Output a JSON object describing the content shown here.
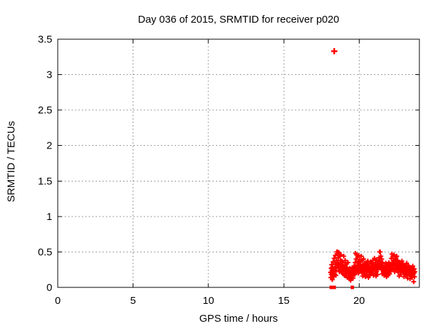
{
  "chart_data": {
    "type": "scatter",
    "title": "Day 036 of 2015, SRMTID for receiver p020",
    "xlabel": "GPS time / hours",
    "ylabel": "SRMTID / TECUs",
    "xlim": [
      0,
      24
    ],
    "ylim": [
      0,
      3.5
    ],
    "x_tick_values": [
      0,
      5,
      10,
      15,
      20
    ],
    "x_tick_labels": [
      "0",
      "5",
      "10",
      "15",
      "20"
    ],
    "y_tick_values": [
      0,
      0.5,
      1,
      1.5,
      2,
      2.5,
      3,
      3.5
    ],
    "y_tick_labels": [
      "0",
      "0.5",
      "1",
      "1.5",
      "2",
      "2.5",
      "3",
      "3.5"
    ],
    "grid": "dashed",
    "legend": "none",
    "marker": "plus",
    "marker_color": "#ff0000",
    "grid_color": "#999999",
    "border_color": "#000000",
    "background_color": "#ffffff",
    "outlier": {
      "x": 18.35,
      "y": 3.33
    },
    "zero_points": [
      18.15,
      18.35,
      19.55
    ],
    "series": [
      {
        "name": "SRMTID",
        "x_start": 18.1,
        "x_step": 0.02,
        "y": [
          0.21,
          0.14,
          0.27,
          0.18,
          0.32,
          0.24,
          0.11,
          0.29,
          0.19,
          0.36,
          0.22,
          0.15,
          0.41,
          0.26,
          0.18,
          0.33,
          0.45,
          0.28,
          0.17,
          0.24,
          0.38,
          0.5,
          0.31,
          0.47,
          0.5,
          0.35,
          0.42,
          0.27,
          0.49,
          0.33,
          0.22,
          0.44,
          0.3,
          0.38,
          0.25,
          0.46,
          0.32,
          0.21,
          0.37,
          0.28,
          0.24,
          0.35,
          0.19,
          0.29,
          0.44,
          0.26,
          0.17,
          0.31,
          0.22,
          0.38,
          0.27,
          0.16,
          0.24,
          0.33,
          0.2,
          0.28,
          0.14,
          0.25,
          0.35,
          0.21,
          0.16,
          0.23,
          0.12,
          0.19,
          0.27,
          0.15,
          0.21,
          0.1,
          0.18,
          0.24,
          0.14,
          0.2,
          0.28,
          0.17,
          0.23,
          0.13,
          0.26,
          0.19,
          0.3,
          0.22,
          0.28,
          0.18,
          0.35,
          0.48,
          0.26,
          0.4,
          0.22,
          0.46,
          0.31,
          0.24,
          0.43,
          0.29,
          0.37,
          0.2,
          0.45,
          0.33,
          0.26,
          0.39,
          0.23,
          0.31,
          0.36,
          0.25,
          0.44,
          0.3,
          0.21,
          0.38,
          0.27,
          0.16,
          0.32,
          0.24,
          0.4,
          0.28,
          0.19,
          0.34,
          0.23,
          0.29,
          0.15,
          0.26,
          0.35,
          0.22,
          0.27,
          0.18,
          0.31,
          0.23,
          0.37,
          0.26,
          0.14,
          0.29,
          0.21,
          0.33,
          0.24,
          0.17,
          0.28,
          0.36,
          0.22,
          0.3,
          0.19,
          0.25,
          0.34,
          0.23,
          0.29,
          0.38,
          0.24,
          0.17,
          0.32,
          0.26,
          0.41,
          0.28,
          0.2,
          0.35,
          0.27,
          0.16,
          0.3,
          0.22,
          0.39,
          0.25,
          0.18,
          0.33,
          0.27,
          0.36,
          0.28,
          0.42,
          0.31,
          0.5,
          0.37,
          0.5,
          0.29,
          0.44,
          0.33,
          0.25,
          0.4,
          0.27,
          0.19,
          0.35,
          0.24,
          0.31,
          0.21,
          0.28,
          0.17,
          0.26,
          0.22,
          0.3,
          0.18,
          0.26,
          0.34,
          0.21,
          0.15,
          0.27,
          0.2,
          0.32,
          0.24,
          0.17,
          0.29,
          0.22,
          0.35,
          0.26,
          0.19,
          0.31,
          0.23,
          0.28,
          0.33,
          0.24,
          0.41,
          0.29,
          0.47,
          0.35,
          0.26,
          0.44,
          0.31,
          0.38,
          0.27,
          0.46,
          0.33,
          0.22,
          0.4,
          0.3,
          0.36,
          0.25,
          0.43,
          0.32,
          0.44,
          0.31,
          0.26,
          0.38,
          0.28,
          0.21,
          0.34,
          0.27,
          0.16,
          0.3,
          0.24,
          0.35,
          0.22,
          0.29,
          0.18,
          0.32,
          0.25,
          0.37,
          0.23,
          0.28,
          0.24,
          0.33,
          0.21,
          0.28,
          0.15,
          0.26,
          0.31,
          0.19,
          0.27,
          0.22,
          0.3,
          0.17,
          0.25,
          0.34,
          0.21,
          0.28,
          0.13,
          0.24,
          0.3,
          0.2,
          0.26,
          0.18,
          0.29,
          0.22,
          0.12,
          0.25,
          0.19,
          0.28,
          0.16,
          0.23,
          0.27,
          0.14,
          0.21,
          0.3,
          0.18,
          0.24,
          0.08,
          0.2,
          0.26,
          0.15,
          0.22
        ]
      }
    ]
  }
}
